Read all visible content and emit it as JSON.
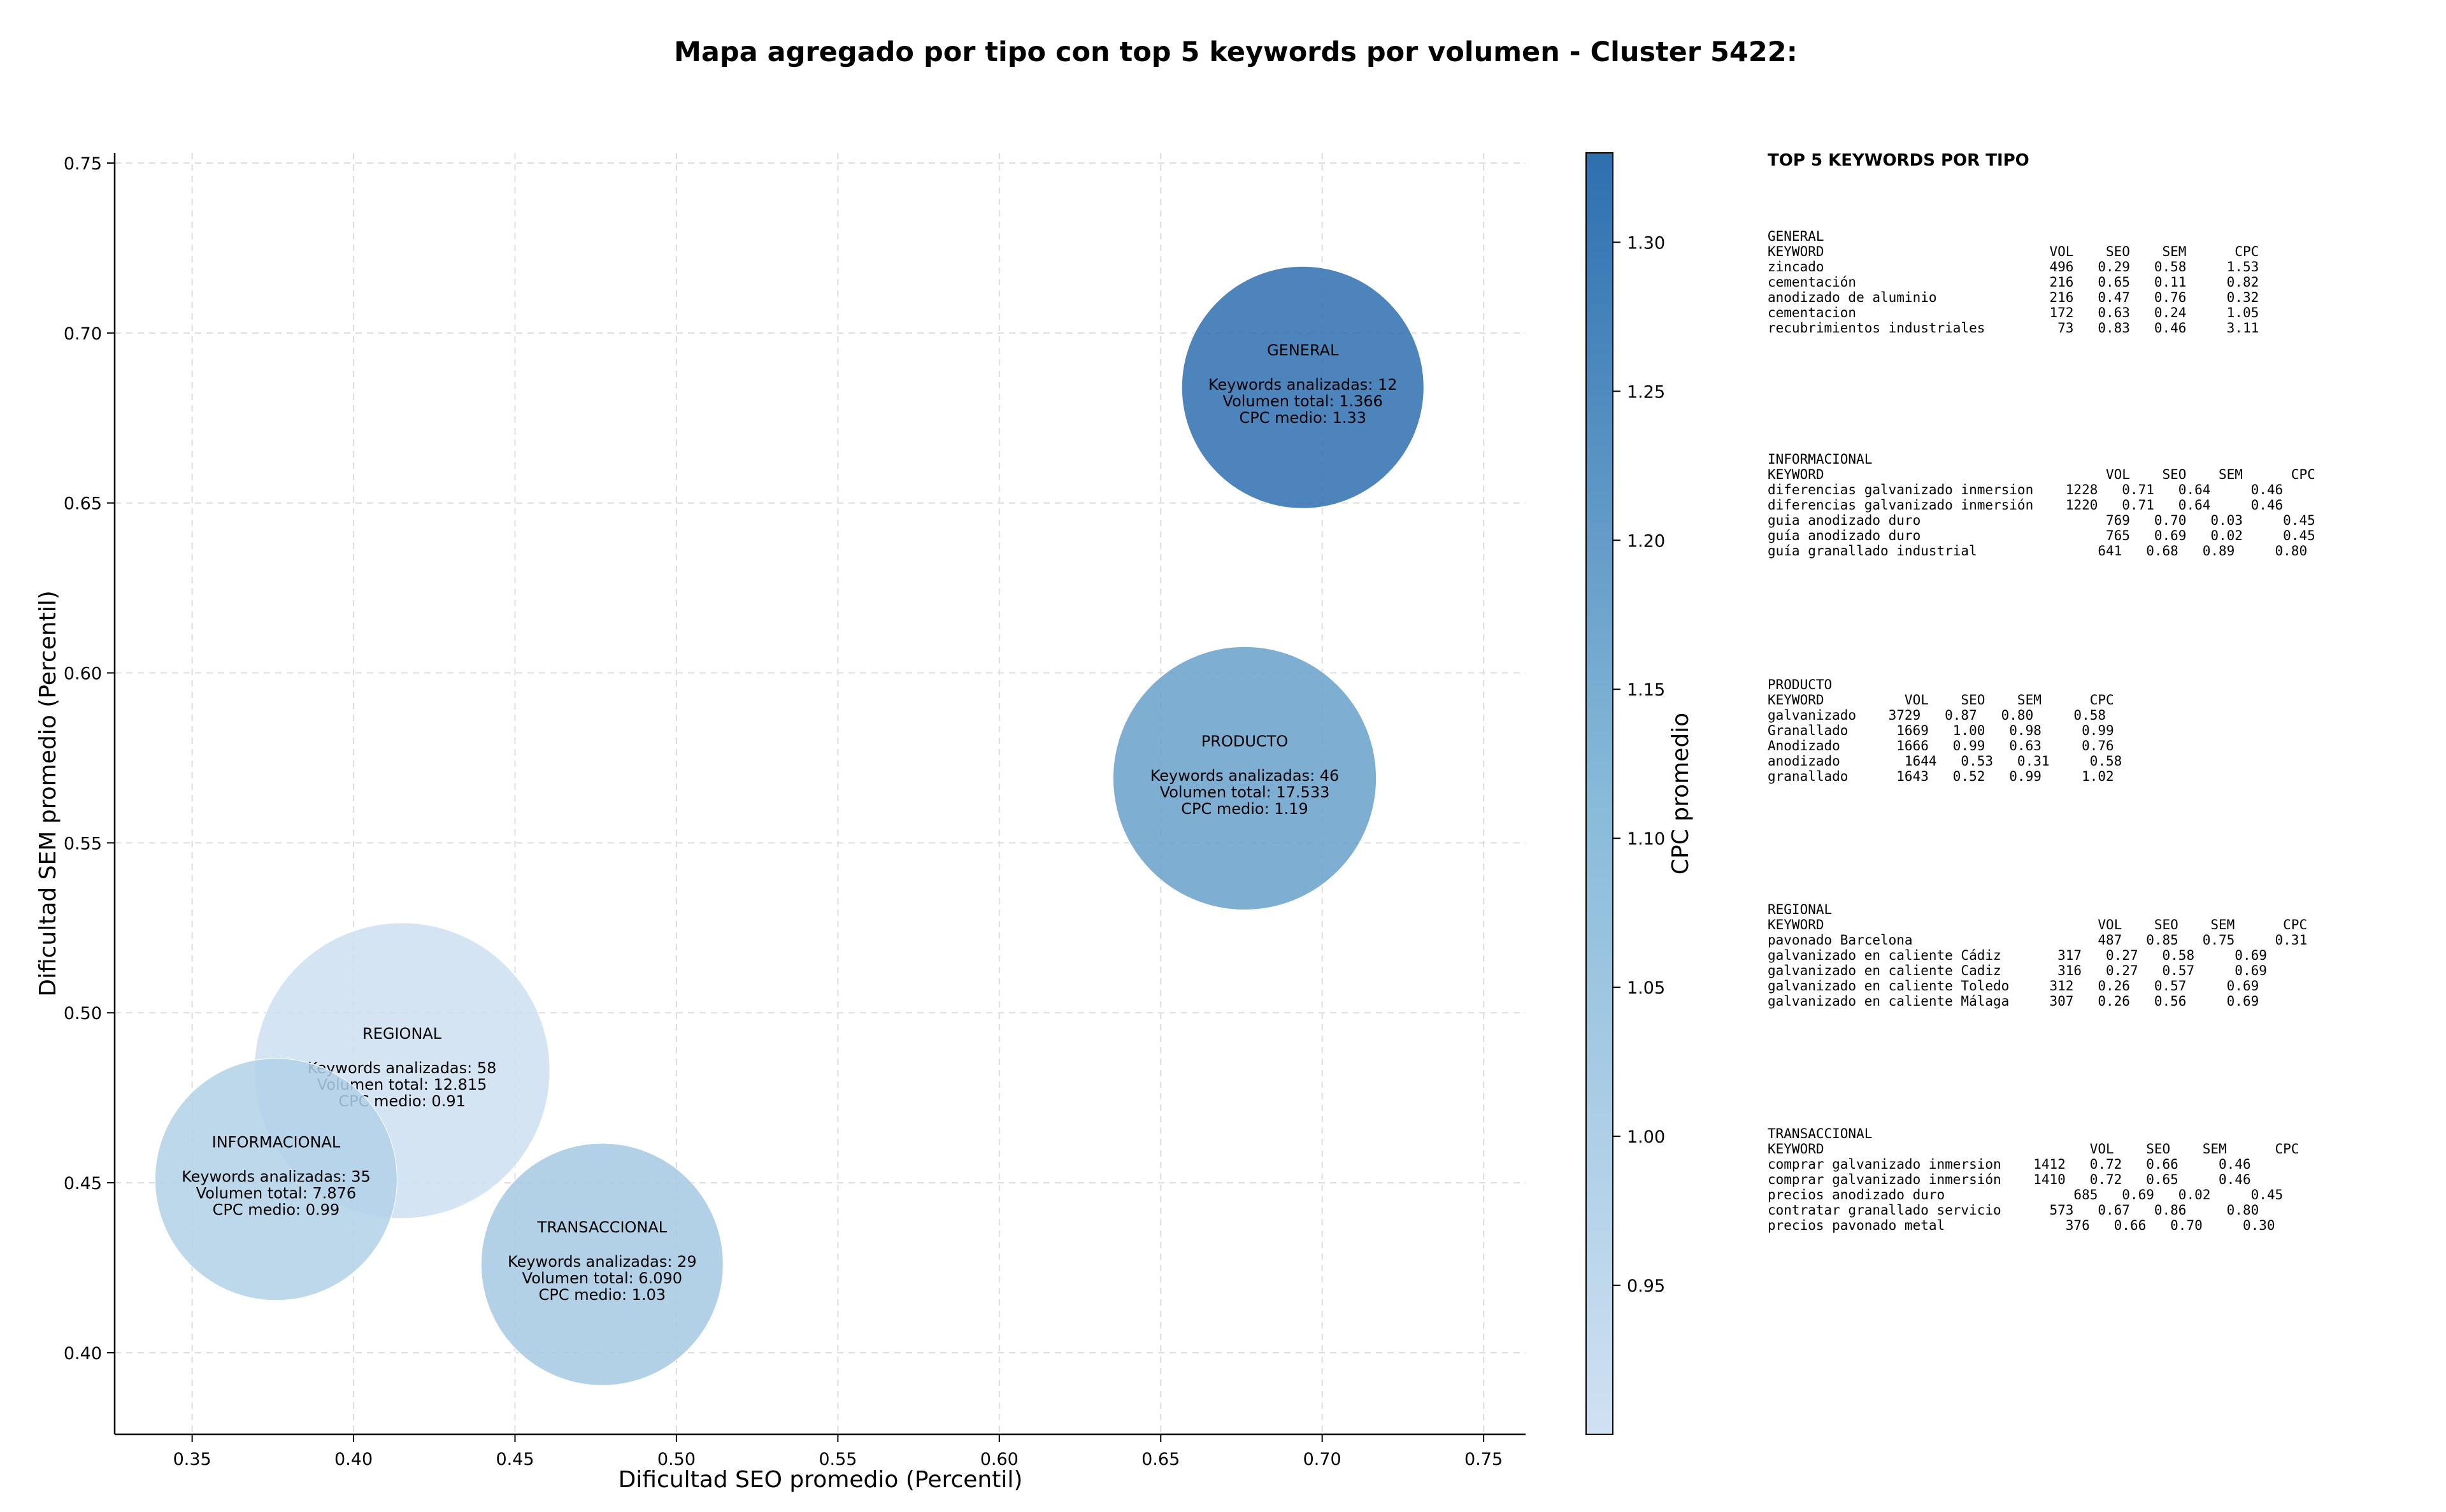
{
  "chart_data": {
    "type": "scatter",
    "title": "Mapa agregado por tipo con top 5 keywords por volumen - Cluster 5422:",
    "xlabel": "Dificultad SEO promedio (Percentil)",
    "ylabel": "Dificultad SEM promedio (Percentil)",
    "xlim": [
      0.326,
      0.763
    ],
    "ylim": [
      0.376,
      0.753
    ],
    "xticks": [
      0.35,
      0.4,
      0.45,
      0.5,
      0.55,
      0.6,
      0.65,
      0.7,
      0.75
    ],
    "yticks": [
      0.4,
      0.45,
      0.5,
      0.55,
      0.6,
      0.65,
      0.7,
      0.75
    ],
    "xtick_labels": [
      "0.35",
      "0.40",
      "0.45",
      "0.50",
      "0.55",
      "0.60",
      "0.65",
      "0.70",
      "0.75"
    ],
    "ytick_labels": [
      "0.40",
      "0.45",
      "0.50",
      "0.55",
      "0.60",
      "0.65",
      "0.70",
      "0.75"
    ],
    "grid": true,
    "colorbar": {
      "label": "CPC promedio",
      "min": 0.9,
      "max": 1.33,
      "ticks": [
        0.95,
        1.0,
        1.05,
        1.1,
        1.15,
        1.2,
        1.25,
        1.3
      ],
      "tick_labels": [
        "0.95",
        "1.00",
        "1.05",
        "1.10",
        "1.15",
        "1.20",
        "1.25",
        "1.30"
      ],
      "color_low": "#d0e1f2",
      "color_high": "#2b6cb0"
    },
    "bubbles": [
      {
        "tipo": "GENERAL",
        "x": 0.694,
        "y": 0.684,
        "keywords": 12,
        "volumen": 1366,
        "cpc": 1.33,
        "lines": [
          "Keywords analizadas: 12",
          "Volumen total: 1.366",
          "CPC medio: 1.33"
        ]
      },
      {
        "tipo": "PRODUCTO",
        "x": 0.676,
        "y": 0.569,
        "keywords": 46,
        "volumen": 17533,
        "cpc": 1.19,
        "lines": [
          "Keywords analizadas: 46",
          "Volumen total: 17.533",
          "CPC medio: 1.19"
        ]
      },
      {
        "tipo": "REGIONAL",
        "x": 0.415,
        "y": 0.483,
        "keywords": 58,
        "volumen": 12815,
        "cpc": 0.91,
        "lines": [
          "Keywords analizadas: 58",
          "Volumen total: 12.815",
          "CPC medio: 0.91"
        ]
      },
      {
        "tipo": "INFORMACIONAL",
        "x": 0.376,
        "y": 0.451,
        "keywords": 35,
        "volumen": 7876,
        "cpc": 0.99,
        "lines": [
          "Keywords analizadas: 35",
          "Volumen total: 7.876",
          "CPC medio: 0.99"
        ]
      },
      {
        "tipo": "TRANSACCIONAL",
        "x": 0.477,
        "y": 0.426,
        "keywords": 29,
        "volumen": 6090,
        "cpc": 1.03,
        "lines": [
          "Keywords analizadas: 29",
          "Volumen total: 6.090",
          "CPC medio: 1.03"
        ]
      }
    ]
  },
  "top_keywords": {
    "title": "TOP 5 KEYWORDS POR TIPO",
    "groups": [
      {
        "name": "GENERAL",
        "lines": [
          "KEYWORD                            VOL    SEO    SEM      CPC",
          "zincado                            496   0.29   0.58     1.53",
          "cementación                        216   0.65   0.11     0.82",
          "anodizado de aluminio              216   0.47   0.76     0.32",
          "cementacion                        172   0.63   0.24     1.05",
          "recubrimientos industriales         73   0.83   0.46     3.11"
        ]
      },
      {
        "name": "INFORMACIONAL",
        "lines": [
          "KEYWORD                                   VOL    SEO    SEM      CPC",
          "diferencias galvanizado inmersion    1228   0.71   0.64     0.46",
          "diferencias galvanizado inmersión    1220   0.71   0.64     0.46",
          "guia anodizado duro                       769   0.70   0.03     0.45",
          "guía anodizado duro                       765   0.69   0.02     0.45",
          "guía granallado industrial               641   0.68   0.89     0.80"
        ]
      },
      {
        "name": "PRODUCTO",
        "lines": [
          "KEYWORD          VOL    SEO    SEM      CPC",
          "galvanizado    3729   0.87   0.80     0.58",
          "Granallado      1669   1.00   0.98     0.99",
          "Anodizado       1666   0.99   0.63     0.76",
          "anodizado        1644   0.53   0.31     0.58",
          "granallado      1643   0.52   0.99     1.02"
        ]
      },
      {
        "name": "REGIONAL",
        "lines": [
          "KEYWORD                                  VOL    SEO    SEM      CPC",
          "pavonado Barcelona                       487   0.85   0.75     0.31",
          "galvanizado en caliente Cádiz       317   0.27   0.58     0.69",
          "galvanizado en caliente Cadiz       316   0.27   0.57     0.69",
          "galvanizado en caliente Toledo     312   0.26   0.57     0.69",
          "galvanizado en caliente Málaga     307   0.26   0.56     0.69"
        ]
      },
      {
        "name": "TRANSACCIONAL",
        "lines": [
          "KEYWORD                                 VOL    SEO    SEM      CPC",
          "comprar galvanizado inmersion    1412   0.72   0.66     0.46",
          "comprar galvanizado inmersión    1410   0.72   0.65     0.46",
          "precios anodizado duro                685   0.69   0.02     0.45",
          "contratar granallado servicio      573   0.67   0.86     0.80",
          "precios pavonado metal               376   0.66   0.70     0.30"
        ]
      }
    ]
  }
}
